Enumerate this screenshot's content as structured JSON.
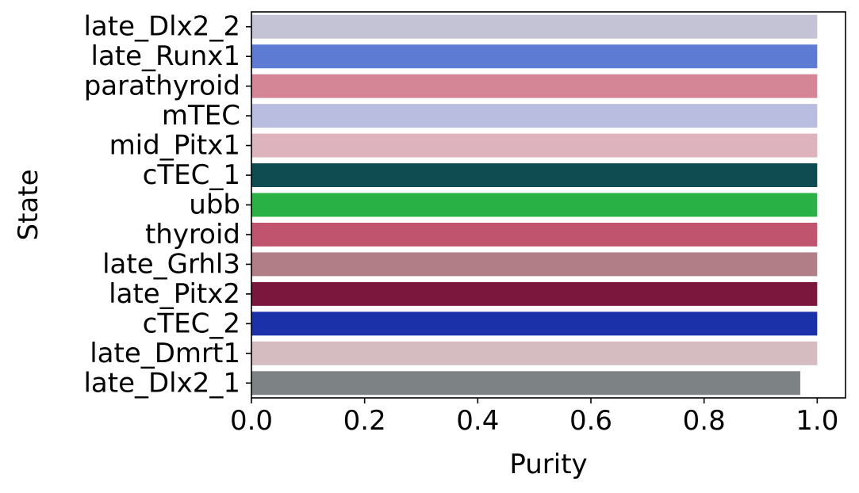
{
  "chart_data": {
    "type": "bar",
    "orientation": "horizontal",
    "xlabel": "Purity",
    "ylabel": "State",
    "xlim": [
      0,
      1.05
    ],
    "xticks": [
      0.0,
      0.2,
      0.4,
      0.6,
      0.8,
      1.0
    ],
    "xtick_labels": [
      "0.0",
      "0.2",
      "0.4",
      "0.6",
      "0.8",
      "1.0"
    ],
    "grid": false,
    "categories": [
      "late_Dlx2_2",
      "late_Runx1",
      "parathyroid",
      "mTEC",
      "mid_Pitx1",
      "cTEC_1",
      "ubb",
      "thyroid",
      "late_Grhl3",
      "late_Pitx2",
      "cTEC_2",
      "late_Dmrt1",
      "late_Dlx2_1"
    ],
    "values": [
      1.0,
      1.0,
      1.0,
      1.0,
      1.0,
      1.0,
      1.0,
      1.0,
      1.0,
      1.0,
      1.0,
      1.0,
      0.97
    ],
    "colors": [
      "#c4c3d6",
      "#5d7bd2",
      "#d48596",
      "#b9bde0",
      "#ddb4bd",
      "#0f4c51",
      "#29b146",
      "#c0546f",
      "#b17d86",
      "#7b163c",
      "#1b31aa",
      "#d5bcc1",
      "#7d8385"
    ]
  }
}
